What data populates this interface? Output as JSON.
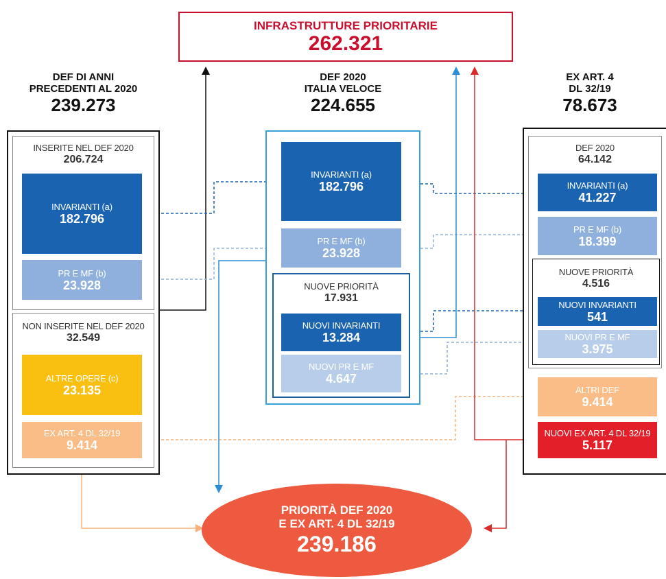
{
  "top": {
    "title": "INFRASTRUTTURE PRIORITARIE",
    "value": "262.321"
  },
  "columns": [
    {
      "heading": [
        "DEF DI ANNI",
        "PRECEDENTI AL 2020"
      ],
      "total": "239.273",
      "groups": [
        {
          "label": "INSERITE NEL DEF 2020",
          "total": "206.724",
          "items": [
            {
              "label": "INVARIANTI (a)",
              "value": "182.796"
            },
            {
              "label": "PR E MF (b)",
              "value": "23.928"
            }
          ]
        },
        {
          "label": "NON INSERITE NEL DEF 2020",
          "total": "32.549",
          "items": [
            {
              "label": "ALTRE OPERE (c)",
              "value": "23.135"
            },
            {
              "label": "EX ART. 4 DL 32/19",
              "value": "9.414"
            }
          ]
        }
      ]
    },
    {
      "heading": [
        "DEF 2020",
        "ITALIA VELOCE"
      ],
      "total": "224.655",
      "items": [
        {
          "label": "INVARIANTI (a)",
          "value": "182.796"
        },
        {
          "label": "PR E MF (b)",
          "value": "23.928"
        }
      ],
      "groups": [
        {
          "label": "NUOVE PRIORITÀ",
          "total": "17.931",
          "items": [
            {
              "label": "NUOVI INVARIANTI",
              "value": "13.284"
            },
            {
              "label": "NUOVI PR E MF",
              "value": "4.647"
            }
          ]
        }
      ]
    },
    {
      "heading": [
        "EX ART. 4",
        "DL 32/19"
      ],
      "total": "78.673",
      "groups": [
        {
          "label": "DEF 2020",
          "total": "64.142",
          "items": [
            {
              "label": "INVARIANTI (a)",
              "value": "41.227"
            },
            {
              "label": "PR E MF (b)",
              "value": "18.399"
            }
          ],
          "groups": [
            {
              "label": "NUOVE PRIORITÀ",
              "total": "4.516",
              "items": [
                {
                  "label": "NUOVI INVARIANTI",
                  "value": "541"
                },
                {
                  "label": "NUOVI PR E MF",
                  "value": "3.975"
                }
              ]
            }
          ]
        }
      ],
      "items": [
        {
          "label": "ALTRI DEF",
          "value": "9.414"
        },
        {
          "label": "NUOVI EX ART. 4 DL 32/19",
          "value": "5.117"
        }
      ]
    }
  ],
  "result": {
    "lines": [
      "PRIORITÀ DEF 2020",
      "E EX ART. 4 DL 32/19"
    ],
    "value": "239.186"
  }
}
